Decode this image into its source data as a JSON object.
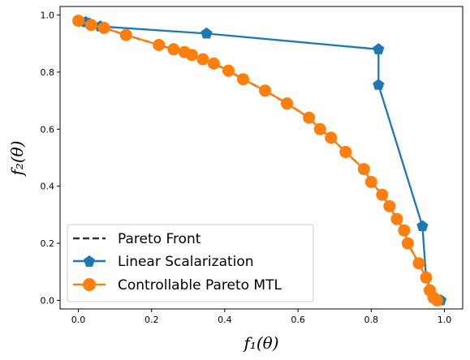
{
  "chart_data": {
    "type": "line",
    "title": "",
    "xlabel": "f₁(θ)",
    "ylabel": "f₂(θ)",
    "xlim": [
      -0.05,
      1.05
    ],
    "ylim": [
      -0.03,
      1.03
    ],
    "xticks": [
      "0.0",
      "0.2",
      "0.4",
      "0.6",
      "0.8",
      "1.0"
    ],
    "yticks": [
      "0.0",
      "0.2",
      "0.4",
      "0.6",
      "0.8",
      "1.0"
    ],
    "grid": false,
    "legend_position": "lower-left",
    "series": [
      {
        "name": "Pareto Front",
        "style": "dashed",
        "color": "#333333",
        "x": [
          0.0,
          0.035,
          0.07,
          0.13,
          0.22,
          0.26,
          0.29,
          0.31,
          0.34,
          0.37,
          0.41,
          0.45,
          0.51,
          0.57,
          0.63,
          0.66,
          0.69,
          0.73,
          0.78,
          0.8,
          0.83,
          0.85,
          0.87,
          0.89,
          0.9,
          0.93,
          0.95,
          0.96,
          0.97,
          0.98
        ],
        "y": [
          0.98,
          0.965,
          0.955,
          0.93,
          0.895,
          0.88,
          0.87,
          0.86,
          0.845,
          0.83,
          0.805,
          0.775,
          0.735,
          0.69,
          0.64,
          0.6,
          0.57,
          0.52,
          0.46,
          0.415,
          0.37,
          0.33,
          0.285,
          0.245,
          0.2,
          0.13,
          0.08,
          0.035,
          0.01,
          0.0
        ]
      },
      {
        "name": "Linear Scalarization",
        "style": "solid",
        "color": "#1f77b4",
        "marker": "pentagon",
        "x": [
          0.0,
          0.02,
          0.03,
          0.06,
          0.35,
          0.82,
          0.82,
          0.94,
          0.95,
          0.97,
          0.99
        ],
        "y": [
          0.98,
          0.975,
          0.97,
          0.96,
          0.935,
          0.88,
          0.755,
          0.26,
          0.08,
          0.01,
          0.0
        ]
      },
      {
        "name": "Controllable Pareto MTL",
        "style": "solid",
        "color": "#ff7f0e",
        "marker": "circle",
        "x": [
          0.0,
          0.035,
          0.07,
          0.13,
          0.22,
          0.26,
          0.29,
          0.31,
          0.34,
          0.37,
          0.41,
          0.45,
          0.51,
          0.57,
          0.63,
          0.66,
          0.69,
          0.73,
          0.78,
          0.8,
          0.83,
          0.85,
          0.87,
          0.89,
          0.9,
          0.93,
          0.95,
          0.96,
          0.97,
          0.98
        ],
        "y": [
          0.98,
          0.965,
          0.955,
          0.93,
          0.895,
          0.88,
          0.87,
          0.86,
          0.845,
          0.83,
          0.805,
          0.775,
          0.735,
          0.69,
          0.64,
          0.6,
          0.57,
          0.52,
          0.46,
          0.415,
          0.37,
          0.33,
          0.285,
          0.245,
          0.2,
          0.13,
          0.08,
          0.035,
          0.01,
          0.0
        ]
      }
    ]
  }
}
